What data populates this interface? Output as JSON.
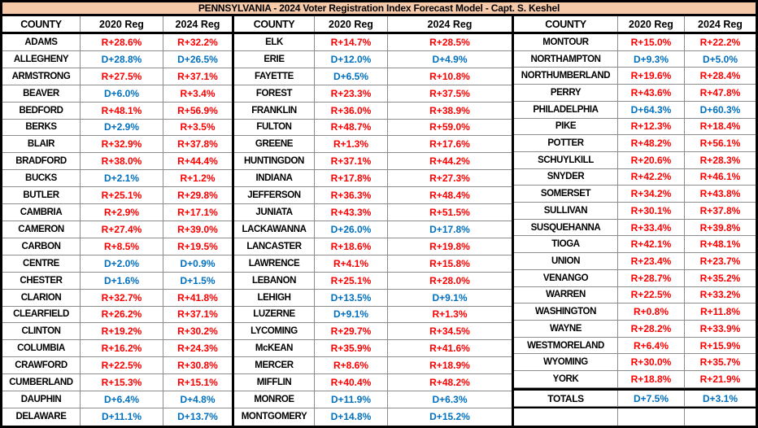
{
  "title": "PENNSYLVANIA -  2024 Voter Registration Index Forecast Model - Capt. S. Keshel",
  "columns": [
    "COUNTY",
    "2020 Reg",
    "2024 Reg"
  ],
  "colors": {
    "republican": "#fe0000",
    "democrat": "#0070c0",
    "title_bg": "#f6c9a9"
  },
  "groups": [
    {
      "rows": [
        {
          "county": "ADAMS",
          "reg_2020": "R+28.6%",
          "reg_2024": "R+32.2%"
        },
        {
          "county": "ALLEGHENY",
          "reg_2020": "D+28.8%",
          "reg_2024": "D+26.5%"
        },
        {
          "county": "ARMSTRONG",
          "reg_2020": "R+27.5%",
          "reg_2024": "R+37.1%"
        },
        {
          "county": "BEAVER",
          "reg_2020": "D+6.0%",
          "reg_2024": "R+3.4%"
        },
        {
          "county": "BEDFORD",
          "reg_2020": "R+48.1%",
          "reg_2024": "R+56.9%"
        },
        {
          "county": "BERKS",
          "reg_2020": "D+2.9%",
          "reg_2024": "R+3.5%"
        },
        {
          "county": "BLAIR",
          "reg_2020": "R+32.9%",
          "reg_2024": "R+37.8%"
        },
        {
          "county": "BRADFORD",
          "reg_2020": "R+38.0%",
          "reg_2024": "R+44.4%"
        },
        {
          "county": "BUCKS",
          "reg_2020": "D+2.1%",
          "reg_2024": "R+1.2%"
        },
        {
          "county": "BUTLER",
          "reg_2020": "R+25.1%",
          "reg_2024": "R+29.8%"
        },
        {
          "county": "CAMBRIA",
          "reg_2020": "R+2.9%",
          "reg_2024": "R+17.1%"
        },
        {
          "county": "CAMERON",
          "reg_2020": "R+27.4%",
          "reg_2024": "R+39.0%"
        },
        {
          "county": "CARBON",
          "reg_2020": "R+8.5%",
          "reg_2024": "R+19.5%"
        },
        {
          "county": "CENTRE",
          "reg_2020": "D+2.0%",
          "reg_2024": "D+0.9%"
        },
        {
          "county": "CHESTER",
          "reg_2020": "D+1.6%",
          "reg_2024": "D+1.5%"
        },
        {
          "county": "CLARION",
          "reg_2020": "R+32.7%",
          "reg_2024": "R+41.8%"
        },
        {
          "county": "CLEARFIELD",
          "reg_2020": "R+26.2%",
          "reg_2024": "R+37.1%"
        },
        {
          "county": "CLINTON",
          "reg_2020": "R+19.2%",
          "reg_2024": "R+30.2%"
        },
        {
          "county": "COLUMBIA",
          "reg_2020": "R+16.2%",
          "reg_2024": "R+24.3%"
        },
        {
          "county": "CRAWFORD",
          "reg_2020": "R+22.5%",
          "reg_2024": "R+30.8%"
        },
        {
          "county": "CUMBERLAND",
          "reg_2020": "R+15.3%",
          "reg_2024": "R+15.1%"
        },
        {
          "county": "DAUPHIN",
          "reg_2020": "D+6.4%",
          "reg_2024": "D+4.8%"
        },
        {
          "county": "DELAWARE",
          "reg_2020": "D+11.1%",
          "reg_2024": "D+13.7%"
        }
      ]
    },
    {
      "rows": [
        {
          "county": "ELK",
          "reg_2020": "R+14.7%",
          "reg_2024": "R+28.5%"
        },
        {
          "county": "ERIE",
          "reg_2020": "D+12.0%",
          "reg_2024": "D+4.9%"
        },
        {
          "county": "FAYETTE",
          "reg_2020": "D+6.5%",
          "reg_2024": "R+10.8%"
        },
        {
          "county": "FOREST",
          "reg_2020": "R+23.3%",
          "reg_2024": "R+37.5%"
        },
        {
          "county": "FRANKLIN",
          "reg_2020": "R+36.0%",
          "reg_2024": "R+38.9%"
        },
        {
          "county": "FULTON",
          "reg_2020": "R+48.7%",
          "reg_2024": "R+59.0%"
        },
        {
          "county": "GREENE",
          "reg_2020": "R+1.3%",
          "reg_2024": "R+17.6%"
        },
        {
          "county": "HUNTINGDON",
          "reg_2020": "R+37.1%",
          "reg_2024": "R+44.2%"
        },
        {
          "county": "INDIANA",
          "reg_2020": "R+17.8%",
          "reg_2024": "R+27.3%"
        },
        {
          "county": "JEFFERSON",
          "reg_2020": "R+36.3%",
          "reg_2024": "R+48.4%"
        },
        {
          "county": "JUNIATA",
          "reg_2020": "R+43.3%",
          "reg_2024": "R+51.5%"
        },
        {
          "county": "LACKAWANNA",
          "reg_2020": "D+26.0%",
          "reg_2024": "D+17.8%"
        },
        {
          "county": "LANCASTER",
          "reg_2020": "R+18.6%",
          "reg_2024": "R+19.8%"
        },
        {
          "county": "LAWRENCE",
          "reg_2020": "R+4.1%",
          "reg_2024": "R+15.8%"
        },
        {
          "county": "LEBANON",
          "reg_2020": "R+25.1%",
          "reg_2024": "R+28.0%"
        },
        {
          "county": "LEHIGH",
          "reg_2020": "D+13.5%",
          "reg_2024": "D+9.1%"
        },
        {
          "county": "LUZERNE",
          "reg_2020": "D+9.1%",
          "reg_2024": "R+1.3%"
        },
        {
          "county": "LYCOMING",
          "reg_2020": "R+29.7%",
          "reg_2024": "R+34.5%"
        },
        {
          "county": "McKEAN",
          "reg_2020": "R+35.9%",
          "reg_2024": "R+41.6%"
        },
        {
          "county": "MERCER",
          "reg_2020": "R+8.6%",
          "reg_2024": "R+18.9%"
        },
        {
          "county": "MIFFLIN",
          "reg_2020": "R+40.4%",
          "reg_2024": "R+48.2%"
        },
        {
          "county": "MONROE",
          "reg_2020": "D+11.9%",
          "reg_2024": "D+6.3%"
        },
        {
          "county": "MONTGOMERY",
          "reg_2020": "D+14.8%",
          "reg_2024": "D+15.2%"
        }
      ]
    },
    {
      "rows": [
        {
          "county": "MONTOUR",
          "reg_2020": "R+15.0%",
          "reg_2024": "R+22.2%"
        },
        {
          "county": "NORTHAMPTON",
          "reg_2020": "D+9.3%",
          "reg_2024": "D+5.0%"
        },
        {
          "county": "NORTHUMBERLAND",
          "reg_2020": "R+19.6%",
          "reg_2024": "R+28.4%"
        },
        {
          "county": "PERRY",
          "reg_2020": "R+43.6%",
          "reg_2024": "R+47.8%"
        },
        {
          "county": "PHILADELPHIA",
          "reg_2020": "D+64.3%",
          "reg_2024": "D+60.3%"
        },
        {
          "county": "PIKE",
          "reg_2020": "R+12.3%",
          "reg_2024": "R+18.4%"
        },
        {
          "county": "POTTER",
          "reg_2020": "R+48.2%",
          "reg_2024": "R+56.1%"
        },
        {
          "county": "SCHUYLKILL",
          "reg_2020": "R+20.6%",
          "reg_2024": "R+28.3%"
        },
        {
          "county": "SNYDER",
          "reg_2020": "R+42.2%",
          "reg_2024": "R+46.1%"
        },
        {
          "county": "SOMERSET",
          "reg_2020": "R+34.2%",
          "reg_2024": "R+43.8%"
        },
        {
          "county": "SULLIVAN",
          "reg_2020": "R+30.1%",
          "reg_2024": "R+37.8%"
        },
        {
          "county": "SUSQUEHANNA",
          "reg_2020": "R+33.4%",
          "reg_2024": "R+39.8%"
        },
        {
          "county": "TIOGA",
          "reg_2020": "R+42.1%",
          "reg_2024": "R+48.1%"
        },
        {
          "county": "UNION",
          "reg_2020": "R+23.4%",
          "reg_2024": "R+23.7%"
        },
        {
          "county": "VENANGO",
          "reg_2020": "R+28.7%",
          "reg_2024": "R+35.2%"
        },
        {
          "county": "WARREN",
          "reg_2020": "R+22.5%",
          "reg_2024": "R+33.2%"
        },
        {
          "county": "WASHINGTON",
          "reg_2020": "R+0.8%",
          "reg_2024": "R+11.8%"
        },
        {
          "county": "WAYNE",
          "reg_2020": "R+28.2%",
          "reg_2024": "R+33.9%"
        },
        {
          "county": "WESTMORELAND",
          "reg_2020": "R+6.4%",
          "reg_2024": "R+15.9%"
        },
        {
          "county": "WYOMING",
          "reg_2020": "R+30.0%",
          "reg_2024": "R+35.7%"
        },
        {
          "county": "YORK",
          "reg_2020": "R+18.8%",
          "reg_2024": "R+21.9%"
        }
      ]
    }
  ],
  "totals": {
    "label": "TOTALS",
    "reg_2020": "D+7.5%",
    "reg_2024": "D+3.1%"
  }
}
